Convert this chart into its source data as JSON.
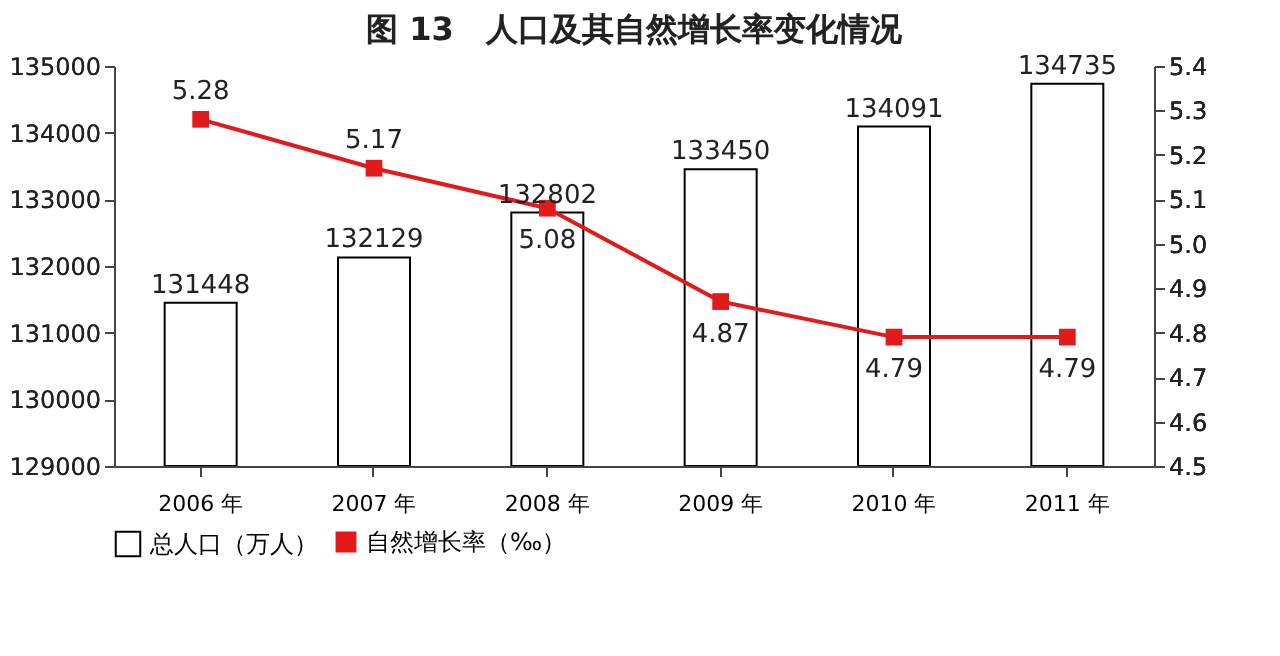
{
  "chart_data": {
    "type": "bar",
    "title": "图 13　人口及其自然增长率变化情况",
    "categories": [
      "2006 年",
      "2007 年",
      "2008 年",
      "2009 年",
      "2010 年",
      "2011 年"
    ],
    "series": [
      {
        "name": "总人口（万人）",
        "color": "#ffffff",
        "values": [
          131448,
          132129,
          132802,
          133450,
          134091,
          134735
        ]
      },
      {
        "name": "自然增长率（‰）",
        "type": "line",
        "axis": "y2",
        "color": "#e31a1c",
        "values": [
          5.28,
          5.17,
          5.08,
          4.87,
          4.79,
          4.79
        ]
      }
    ],
    "ylim": [
      129000,
      135000
    ],
    "yticks": [
      129000,
      130000,
      131000,
      132000,
      133000,
      134000,
      135000
    ],
    "y2lim": [
      4.5,
      5.4
    ],
    "y2ticks": [
      4.5,
      4.6,
      4.7,
      4.8,
      4.9,
      {
        "value": 5.0,
        "label": "5.0"
      },
      5.1,
      5.2,
      5.3,
      5.4
    ],
    "data_labels": true,
    "marker": "square",
    "line_style": "solid",
    "grid": false,
    "legend": "bottom"
  }
}
